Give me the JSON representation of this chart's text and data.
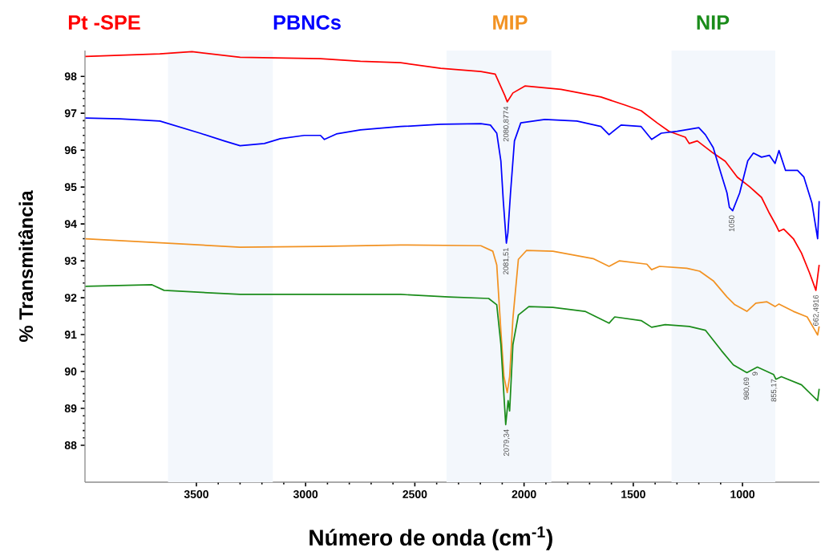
{
  "chart_data": {
    "type": "line",
    "xlabel": "Número de onda (cm$^{-1}$)",
    "ylabel": "% Transmitância",
    "xlim": [
      4010,
      648
    ],
    "ylim": [
      87.0,
      98.7
    ],
    "xticks": [
      3500,
      3000,
      2500,
      2000,
      1500,
      1000
    ],
    "yticks": [
      88,
      89,
      90,
      91,
      92,
      93,
      94,
      95,
      96,
      97,
      98
    ],
    "grid": false,
    "legend": "top",
    "marker": "none",
    "line_style": "solid",
    "bands": [
      {
        "axis": "x",
        "from": 3630,
        "to": 3150,
        "color": "#f3f7fc"
      },
      {
        "axis": "x",
        "from": 2355,
        "to": 1875,
        "color": "#f3f7fc"
      },
      {
        "axis": "x",
        "from": 1325,
        "to": 850,
        "color": "#f3f7fc"
      }
    ],
    "series": [
      {
        "name": "Pt -SPE",
        "color": "#ff0000",
        "x": [
          4008,
          3667,
          3520,
          3300,
          2932,
          2749,
          2565,
          2382,
          2198,
          2132,
          2088,
          2077,
          2051,
          1996,
          1831,
          1648,
          1537,
          1464,
          1391,
          1336,
          1262,
          1244,
          1207,
          1134,
          1079,
          1024,
          968,
          913,
          877,
          847,
          833,
          811,
          767,
          730,
          693,
          664,
          656,
          649
        ],
        "values": [
          98.54,
          98.61,
          98.67,
          98.52,
          98.48,
          98.41,
          98.37,
          98.22,
          98.13,
          98.06,
          97.48,
          97.31,
          97.55,
          97.74,
          97.65,
          97.44,
          97.22,
          97.07,
          96.74,
          96.51,
          96.35,
          96.18,
          96.25,
          95.92,
          95.7,
          95.27,
          95.01,
          94.72,
          94.29,
          93.97,
          93.8,
          93.86,
          93.6,
          93.21,
          92.67,
          92.2,
          92.57,
          92.89
        ]
      },
      {
        "name": "PBNCs",
        "color": "#0000ff",
        "x": [
          4008,
          3850,
          3667,
          3483,
          3373,
          3300,
          3189,
          3116,
          3006,
          2932,
          2914,
          2859,
          2749,
          2565,
          2382,
          2198,
          2154,
          2125,
          2106,
          2095,
          2081,
          2074,
          2062,
          2044,
          2015,
          1905,
          1758,
          1648,
          1611,
          1556,
          1464,
          1416,
          1372,
          1299,
          1200,
          1170,
          1134,
          1097,
          1071,
          1060,
          1045,
          1013,
          976,
          950,
          913,
          877,
          851,
          833,
          803,
          748,
          719,
          682,
          656,
          649
        ],
        "values": [
          96.87,
          96.85,
          96.79,
          96.46,
          96.25,
          96.12,
          96.18,
          96.31,
          96.4,
          96.4,
          96.29,
          96.44,
          96.55,
          96.64,
          96.7,
          96.72,
          96.68,
          96.46,
          95.7,
          94.62,
          93.48,
          93.76,
          94.84,
          96.25,
          96.74,
          96.83,
          96.79,
          96.64,
          96.42,
          96.68,
          96.64,
          96.29,
          96.46,
          96.51,
          96.61,
          96.42,
          96.07,
          95.34,
          94.84,
          94.45,
          94.36,
          94.84,
          95.71,
          95.92,
          95.81,
          95.86,
          95.64,
          95.99,
          95.45,
          95.45,
          95.27,
          94.56,
          93.6,
          94.62
        ]
      },
      {
        "name": "MIP",
        "color": "#f29222",
        "x": [
          4008,
          3630,
          3300,
          2932,
          2565,
          2198,
          2143,
          2125,
          2106,
          2092,
          2077,
          2066,
          2051,
          2026,
          1989,
          1868,
          1684,
          1611,
          1563,
          1438,
          1416,
          1380,
          1255,
          1196,
          1134,
          1071,
          1035,
          980,
          939,
          888,
          851,
          833,
          767,
          704,
          656,
          649
        ],
        "values": [
          93.6,
          93.48,
          93.37,
          93.39,
          93.43,
          93.41,
          93.26,
          92.89,
          91.09,
          89.86,
          89.43,
          89.86,
          91.44,
          93.04,
          93.28,
          93.26,
          93.06,
          92.85,
          93.0,
          92.91,
          92.76,
          92.85,
          92.8,
          92.72,
          92.46,
          92.02,
          91.81,
          91.63,
          91.85,
          91.89,
          91.76,
          91.83,
          91.63,
          91.48,
          90.99,
          91.22
        ]
      },
      {
        "name": "NIP",
        "color": "#1a8c1a",
        "x": [
          4008,
          3703,
          3648,
          3300,
          2932,
          2565,
          2345,
          2162,
          2125,
          2106,
          2095,
          2084,
          2073,
          2066,
          2051,
          2026,
          1978,
          1868,
          1721,
          1611,
          1585,
          1464,
          1416,
          1354,
          1244,
          1170,
          1097,
          1042,
          980,
          932,
          858,
          847,
          822,
          730,
          656,
          649
        ],
        "values": [
          92.31,
          92.35,
          92.2,
          92.09,
          92.09,
          92.09,
          92.02,
          91.98,
          91.81,
          90.73,
          89.64,
          88.56,
          89.21,
          88.93,
          90.73,
          91.53,
          91.76,
          91.74,
          91.63,
          91.31,
          91.48,
          91.38,
          91.2,
          91.27,
          91.22,
          91.12,
          90.57,
          90.18,
          89.97,
          90.12,
          89.92,
          89.79,
          89.86,
          89.64,
          89.21,
          89.53
        ]
      }
    ],
    "annotations": [
      {
        "text": "2080,8774",
        "x": 2080.8774,
        "y": 97.31
      },
      {
        "text": "2081,51",
        "x": 2081.51,
        "y": 93.48
      },
      {
        "text": "1050",
        "x": 1050,
        "y": 94.36
      },
      {
        "text": "2079,34",
        "x": 2079.34,
        "y": 88.56
      },
      {
        "text": "980,69",
        "x": 980.69,
        "y": 89.97
      },
      {
        "text": "9",
        "x": 943,
        "y": 90.12
      },
      {
        "text": "855,17",
        "x": 855.17,
        "y": 89.92
      },
      {
        "text": "662,4916",
        "x": 662.4916,
        "y": 92.2
      }
    ]
  }
}
